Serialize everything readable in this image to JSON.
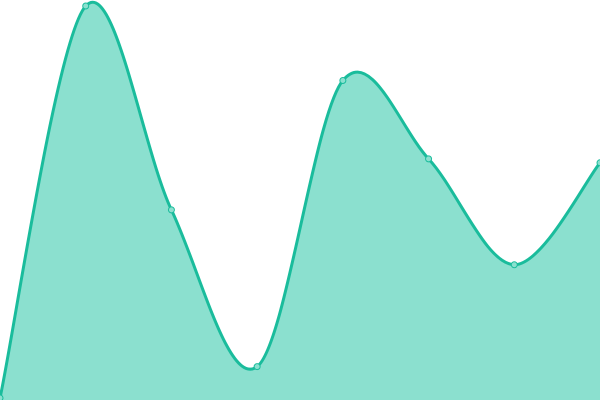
{
  "chart_data": {
    "type": "area",
    "title": "",
    "xlabel": "",
    "ylabel": "",
    "x": [
      0,
      1,
      2,
      3,
      4,
      5,
      6,
      7
    ],
    "values": [
      0,
      100,
      48,
      8,
      81,
      61,
      34,
      60
    ],
    "ylim": [
      0,
      100
    ],
    "grid": false,
    "smooth": true,
    "colors": {
      "line": "#1abc9c",
      "fill": "#8be0cf",
      "point_fill": "#8be0cf"
    }
  }
}
